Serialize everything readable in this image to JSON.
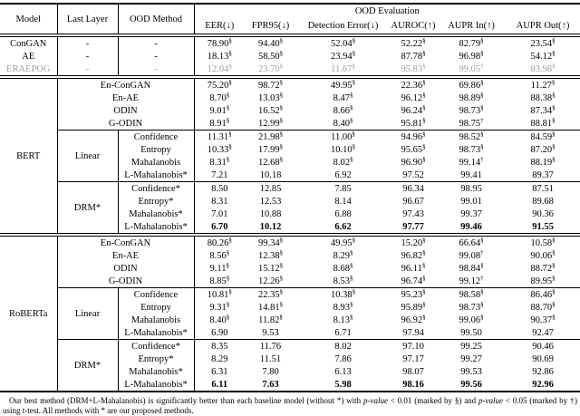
{
  "colors": {
    "grayed_row_text": "#9e9e9e"
  },
  "table": {
    "group_header": "OOD Evaluation",
    "columns": {
      "model": "Model",
      "last_layer": "Last Layer",
      "ood_method": "OOD Method",
      "metrics": [
        "EER(↓)",
        "FPR95(↓)",
        "Detection Error(↓)",
        "AUROC(↑)",
        "AUPR In(↑)",
        "AUPR Out(↑)"
      ]
    },
    "sections": [
      {
        "model_label": null,
        "blocks": [
          {
            "last_layer": null,
            "merged": false,
            "rows": [
              {
                "model": "ConGAN",
                "last_layer": "-",
                "method": "-",
                "values": [
                  "78.90§",
                  "94.40§",
                  "52.04§",
                  "52.22§",
                  "82.79§",
                  "23.54§"
                ]
              },
              {
                "model": "AE",
                "last_layer": "-",
                "method": "-",
                "values": [
                  "18.13§",
                  "58.50§",
                  "23.94§",
                  "87.78§",
                  "96.98§",
                  "54.12§"
                ]
              },
              {
                "model": "ERAEPOG",
                "last_layer": "-",
                "method": "-",
                "gray": true,
                "values": [
                  "12.04§",
                  "23.70§",
                  "11.67§",
                  "95.83§",
                  "99.05†",
                  "83.98§"
                ]
              }
            ]
          }
        ]
      },
      {
        "model_label": "BERT",
        "blocks": [
          {
            "last_layer": null,
            "merged": true,
            "rows": [
              {
                "method": "En-ConGAN",
                "values": [
                  "75.20§",
                  "98.72§",
                  "49.95§",
                  "22.36§",
                  "69.86§",
                  "11.27§"
                ]
              },
              {
                "method": "En-AE",
                "values": [
                  "8.70§",
                  "13.03§",
                  "8.47§",
                  "96.12§",
                  "98.89§",
                  "88.38§"
                ]
              },
              {
                "method": "ODIN",
                "values": [
                  "9.01§",
                  "16.52§",
                  "8.66§",
                  "96.24§",
                  "98.73§",
                  "87.34§"
                ]
              },
              {
                "method": "G-ODIN",
                "values": [
                  "8.91§",
                  "12.99§",
                  "8.40§",
                  "95.81§",
                  "98.75†",
                  "88.81§"
                ]
              }
            ]
          },
          {
            "last_layer": "Linear",
            "merged": false,
            "rows": [
              {
                "method": "Confidence",
                "values": [
                  "11.31§",
                  "21.98§",
                  "11.00§",
                  "94.96§",
                  "98.52§",
                  "84.59§"
                ]
              },
              {
                "method": "Entropy",
                "values": [
                  "10.33§",
                  "17.99§",
                  "10.10§",
                  "95.65§",
                  "98.73§",
                  "87.20§"
                ]
              },
              {
                "method": "Mahalanobis",
                "values": [
                  "8.31§",
                  "12.68§",
                  "8.02§",
                  "96.90§",
                  "99.14†",
                  "88.19§"
                ]
              },
              {
                "method": "L-Mahalanobis*",
                "values": [
                  "7.21",
                  "10.18",
                  "6.92",
                  "97.52",
                  "99.41",
                  "89.37"
                ]
              }
            ]
          },
          {
            "last_layer": "DRM*",
            "merged": false,
            "rows": [
              {
                "method": "Confidence*",
                "values": [
                  "8.50",
                  "12.85",
                  "7.85",
                  "96.34",
                  "98.95",
                  "87.51"
                ]
              },
              {
                "method": "Entropy*",
                "values": [
                  "8.31",
                  "12.53",
                  "8.14",
                  "96.67",
                  "99.01",
                  "89.68"
                ]
              },
              {
                "method": "Mahalanobis*",
                "values": [
                  "7.01",
                  "10.88",
                  "6.88",
                  "97.43",
                  "99.37",
                  "90.36"
                ]
              },
              {
                "method": "L-Mahalanobis*",
                "bold": true,
                "values": [
                  "6.70",
                  "10.12",
                  "6.62",
                  "97.77",
                  "99.46",
                  "91.55"
                ]
              }
            ]
          }
        ]
      },
      {
        "model_label": "RoBERTa",
        "blocks": [
          {
            "last_layer": null,
            "merged": true,
            "rows": [
              {
                "method": "En-ConGAN",
                "values": [
                  "80.26§",
                  "99.34§",
                  "49.95§",
                  "15.20§",
                  "66.64§",
                  "10.58§"
                ]
              },
              {
                "method": "En-AE",
                "values": [
                  "8.56§",
                  "12.38§",
                  "8.29§",
                  "96.82§",
                  "99.08†",
                  "90.06§"
                ]
              },
              {
                "method": "ODIN",
                "values": [
                  "9.11§",
                  "15.12§",
                  "8.68§",
                  "96.11§",
                  "98.84§",
                  "88.72§"
                ]
              },
              {
                "method": "G-ODIN",
                "values": [
                  "8.85§",
                  "12.26§",
                  "8.53§",
                  "96.74§",
                  "99.12†",
                  "89.95§"
                ]
              }
            ]
          },
          {
            "last_layer": "Linear",
            "merged": false,
            "rows": [
              {
                "method": "Confidence",
                "values": [
                  "10.81§",
                  "22.35§",
                  "10.38§",
                  "95.23§",
                  "98.58§",
                  "86.46§"
                ]
              },
              {
                "method": "Entropy",
                "values": [
                  "9.31§",
                  "14.81§",
                  "8.93§",
                  "95.89§",
                  "98.73§",
                  "88.70§"
                ]
              },
              {
                "method": "Mahalanobis",
                "values": [
                  "8.40§",
                  "11.82§",
                  "8.13§",
                  "96.92§",
                  "99.06§",
                  "90.37§"
                ]
              },
              {
                "method": "L-Mahalanobis*",
                "values": [
                  "6.90",
                  "9.53",
                  "6.71",
                  "97.94",
                  "99.50",
                  "92.47"
                ]
              }
            ]
          },
          {
            "last_layer": "DRM*",
            "merged": false,
            "rows": [
              {
                "method": "Confidence*",
                "values": [
                  "8.35",
                  "11.76",
                  "8.02",
                  "97.10",
                  "99.25",
                  "90.46"
                ]
              },
              {
                "method": "Entropy*",
                "values": [
                  "8.29",
                  "11.51",
                  "7.86",
                  "97.17",
                  "99.27",
                  "90.69"
                ]
              },
              {
                "method": "Mahalanobis*",
                "values": [
                  "6.31",
                  "7.80",
                  "6.13",
                  "98.07",
                  "99.53",
                  "92.86"
                ]
              },
              {
                "method": "L-Mahalanobis*",
                "bold": true,
                "values": [
                  "6.11",
                  "7.63",
                  "5.98",
                  "98.16",
                  "99.56",
                  "92.96"
                ]
              }
            ]
          }
        ]
      }
    ]
  },
  "caption": {
    "segments": [
      {
        "t": "Our best method (DRM+L-Mahalanobis) is significantly better than each baseline model (without *) with "
      },
      {
        "t": "p-value",
        "i": true
      },
      {
        "t": " < 0.01 (marked by §) and "
      },
      {
        "t": "p-value",
        "i": true
      },
      {
        "t": " < 0.05 (marked by †) using t-test. All methods with * are our proposed methods."
      }
    ]
  }
}
